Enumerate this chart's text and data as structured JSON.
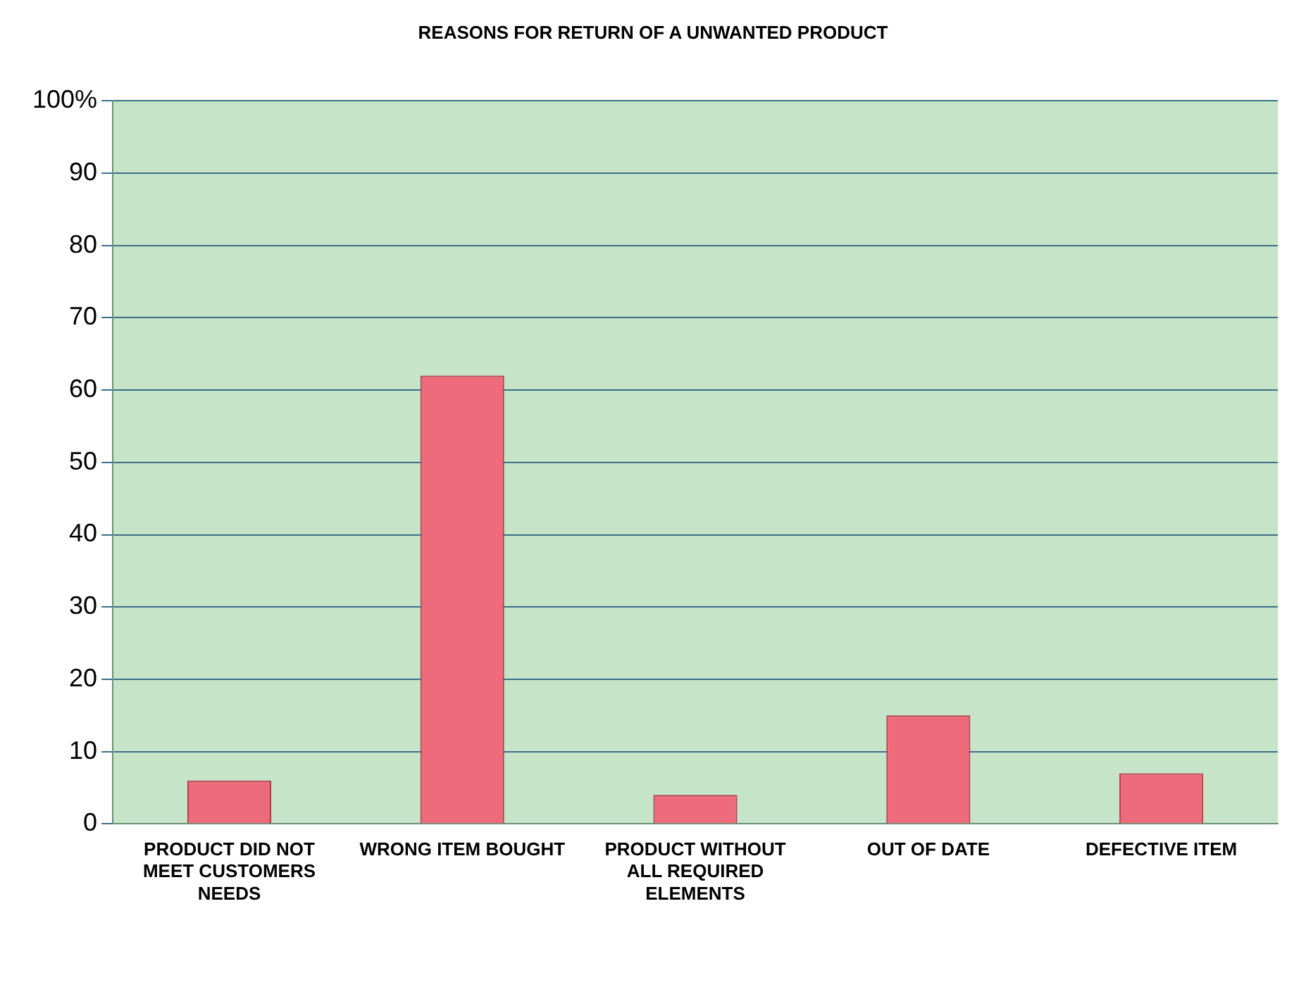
{
  "chart_data": {
    "type": "bar",
    "title": "REASONS FOR RETURN OF A UNWANTED PRODUCT",
    "categories": [
      "PRODUCT DID NOT MEET CUSTOMERS NEEDS",
      "WRONG ITEM BOUGHT",
      "PRODUCT WITHOUT ALL REQUIRED ELEMENTS",
      "OUT OF DATE",
      "DEFECTIVE ITEM"
    ],
    "values": [
      6,
      62,
      4,
      15,
      7
    ],
    "color": "#ee6b7c",
    "ylim": [
      0,
      100
    ],
    "yticks": [
      0,
      10,
      20,
      30,
      40,
      50,
      60,
      70,
      80,
      90,
      {
        "value": 100,
        "label": "100%"
      }
    ],
    "grid": "y",
    "legend": false
  }
}
